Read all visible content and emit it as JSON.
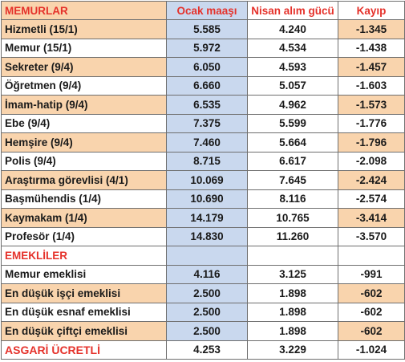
{
  "header": {
    "col1": "MEMURLAR",
    "col2": "Ocak maaşı",
    "col3": "Nisan alım gücü",
    "col4": "Kayıp"
  },
  "rows": [
    {
      "label": "Hizmetli (15/1)",
      "ocak": "5.585",
      "nisan": "4.240",
      "kayip": "-1.345"
    },
    {
      "label": "Memur (15/1)",
      "ocak": "5.972",
      "nisan": "4.534",
      "kayip": "-1.438"
    },
    {
      "label": "Sekreter (9/4)",
      "ocak": "6.050",
      "nisan": "4.593",
      "kayip": "-1.457"
    },
    {
      "label": "Öğretmen (9/4)",
      "ocak": "6.660",
      "nisan": "5.057",
      "kayip": "-1.603"
    },
    {
      "label": "İmam-hatip (9/4)",
      "ocak": "6.535",
      "nisan": "4.962",
      "kayip": "-1.573"
    },
    {
      "label": "Ebe (9/4)",
      "ocak": "7.375",
      "nisan": "5.599",
      "kayip": "-1.776"
    },
    {
      "label": "Hemşire (9/4)",
      "ocak": "7.460",
      "nisan": "5.664",
      "kayip": "-1.796"
    },
    {
      "label": "Polis (9/4)",
      "ocak": "8.715",
      "nisan": "6.617",
      "kayip": "-2.098"
    },
    {
      "label": "Araştırma görevlisi (4/1)",
      "ocak": "10.069",
      "nisan": "7.645",
      "kayip": "-2.424"
    },
    {
      "label": "Başmühendis (1/4)",
      "ocak": "10.690",
      "nisan": "8.116",
      "kayip": "-2.574"
    },
    {
      "label": "Kaymakam (1/4)",
      "ocak": "14.179",
      "nisan": "10.765",
      "kayip": "-3.414"
    },
    {
      "label": "Profesör (1/4)",
      "ocak": "14.830",
      "nisan": "11.260",
      "kayip": "-3.570"
    }
  ],
  "section2": {
    "label": "EMEKLİLER"
  },
  "rows2": [
    {
      "label": "Memur emeklisi",
      "ocak": "4.116",
      "nisan": "3.125",
      "kayip": "-991"
    },
    {
      "label": "En düşük işçi emeklisi",
      "ocak": "2.500",
      "nisan": "1.898",
      "kayip": "-602"
    },
    {
      "label": "En düşük esnaf emeklisi",
      "ocak": "2.500",
      "nisan": "1.898",
      "kayip": "-602"
    },
    {
      "label": "En düşük çiftçi emeklisi",
      "ocak": "2.500",
      "nisan": "1.898",
      "kayip": "-602"
    }
  ],
  "total": {
    "label": "ASGARİ ÜCRETLİ",
    "ocak": "4.253",
    "nisan": "3.229",
    "kayip": "-1.024"
  },
  "colors": {
    "accent_red": "#e5322b",
    "orange_band": "#f9d4ad",
    "blue_column": "#c9d8ee"
  }
}
